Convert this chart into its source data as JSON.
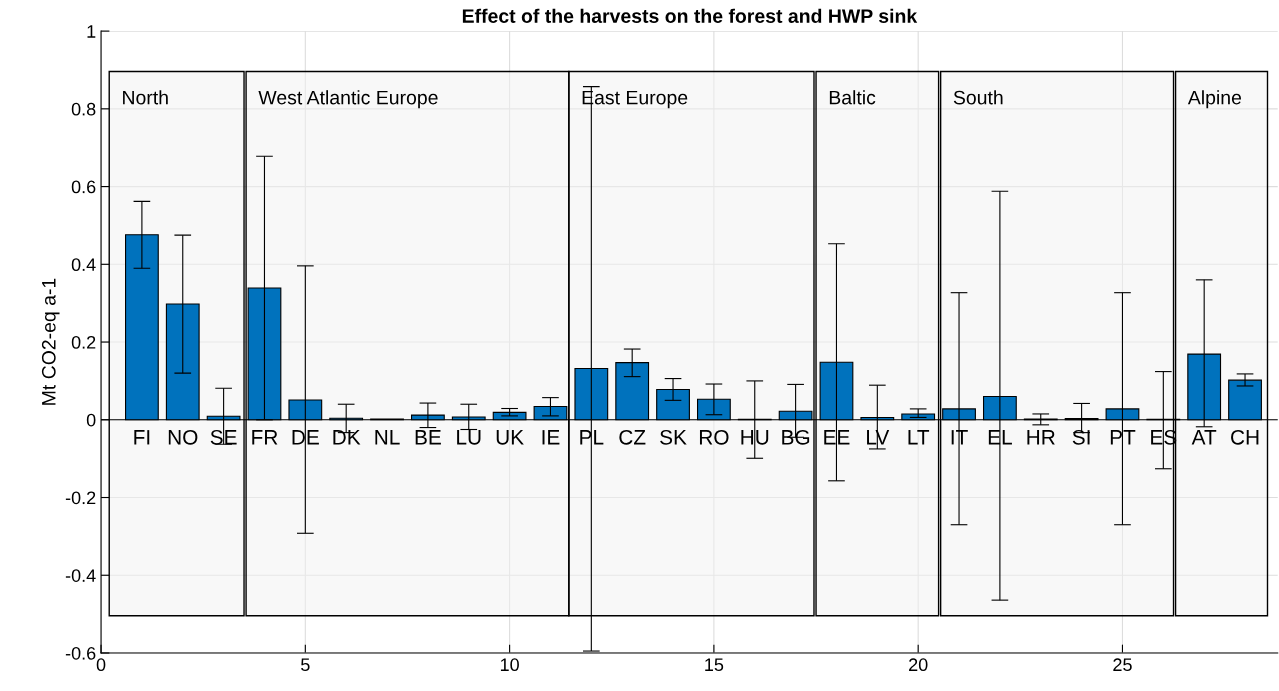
{
  "chart_data": {
    "type": "bar",
    "title": "Effect of the harvests on the forest and HWP sink",
    "ylabel": "Mt CO2-eq a-1",
    "x": [
      1,
      2,
      3,
      4,
      5,
      6,
      7,
      8,
      9,
      10,
      11,
      12,
      13,
      14,
      15,
      16,
      17,
      18,
      19,
      20,
      21,
      22,
      23,
      24,
      25,
      26,
      27,
      28
    ],
    "values": [
      0.476,
      0.298,
      0.009,
      0.339,
      0.051,
      0.004,
      0.002,
      0.012,
      0.007,
      0.019,
      0.034,
      0.132,
      0.147,
      0.078,
      0.053,
      0.001,
      0.022,
      0.148,
      0.006,
      0.015,
      0.028,
      0.06,
      0.002,
      0.003,
      0.028,
      0.001,
      0.169,
      0.102
    ],
    "errors": [
      [
        0.39,
        0.562
      ],
      [
        0.12,
        0.475
      ],
      [
        -0.063,
        0.081
      ],
      [
        0.0,
        0.678
      ],
      [
        -0.292,
        0.396
      ],
      [
        -0.033,
        0.04
      ],
      null,
      [
        -0.02,
        0.043
      ],
      [
        -0.025,
        0.04
      ],
      [
        0.01,
        0.029
      ],
      [
        0.01,
        0.057
      ],
      [
        -0.595,
        0.857
      ],
      [
        0.111,
        0.182
      ],
      [
        0.05,
        0.106
      ],
      [
        0.013,
        0.092
      ],
      [
        -0.099,
        0.1
      ],
      [
        -0.045,
        0.091
      ],
      [
        -0.157,
        0.453
      ],
      [
        -0.075,
        0.089
      ],
      [
        0.006,
        0.028
      ],
      [
        -0.27,
        0.327
      ],
      [
        -0.464,
        0.588
      ],
      [
        -0.013,
        0.015
      ],
      [
        -0.033,
        0.042
      ],
      [
        -0.27,
        0.327
      ],
      [
        -0.126,
        0.124
      ],
      [
        -0.018,
        0.36
      ],
      [
        0.087,
        0.118
      ]
    ],
    "color": "#0072bd",
    "xlim": [
      0,
      28.8
    ],
    "xticks": [
      0,
      5,
      10,
      15,
      20,
      25
    ],
    "ylim": [
      -0.6,
      1
    ],
    "yticks": [
      -0.6,
      -0.4,
      -0.2,
      0,
      0.2,
      0.4,
      0.6,
      0.8,
      1
    ],
    "grid": true,
    "bands": [
      {
        "axis": "x",
        "from": 0.2,
        "to": 3.5,
        "label": "North"
      },
      {
        "axis": "x",
        "from": 3.55,
        "to": 11.45,
        "label": "West Atlantic Europe"
      },
      {
        "axis": "x",
        "from": 11.45,
        "to": 17.45,
        "label": "East Europe"
      },
      {
        "axis": "x",
        "from": 17.5,
        "to": 20.5,
        "label": "Baltic"
      },
      {
        "axis": "x",
        "from": 20.55,
        "to": 26.25,
        "label": "South"
      },
      {
        "axis": "x",
        "from": 26.3,
        "to": 28.55,
        "label": "Alpine"
      }
    ],
    "annotations": [
      "FI",
      "NO",
      "SE",
      "FR",
      "DE",
      "DK",
      "NL",
      "BE",
      "LU",
      "UK",
      "IE",
      "PL",
      "CZ",
      "SK",
      "RO",
      "HU",
      "BG",
      "EE",
      "LV",
      "LT",
      "IT",
      "EL",
      "HR",
      "SI",
      "PT",
      "ES",
      "AT",
      "CH"
    ]
  }
}
